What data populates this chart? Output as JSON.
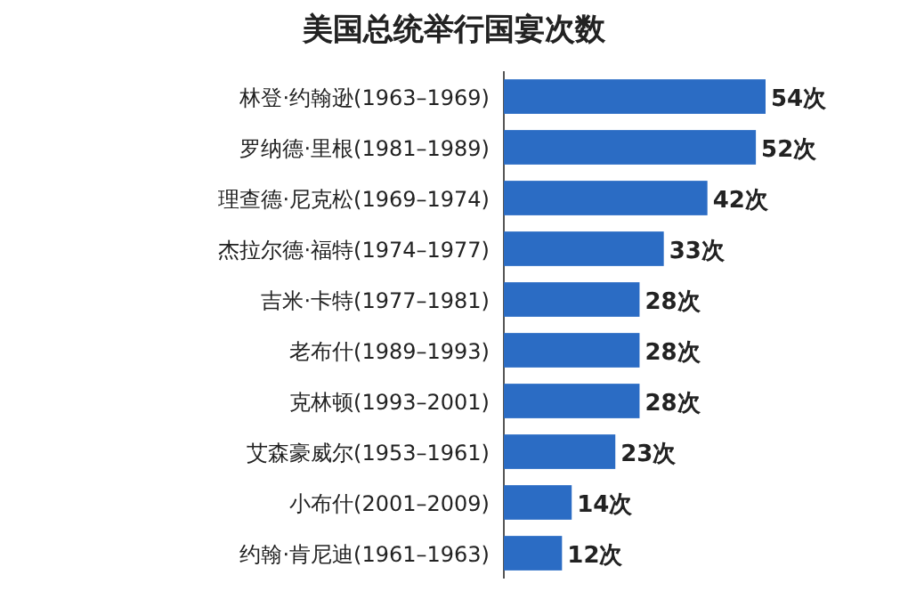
{
  "chart_data": {
    "type": "bar",
    "orientation": "horizontal",
    "title": "美国总统举行国宴次数",
    "categories": [
      "林登·约翰逊(1963–1969)",
      "罗纳德·里根(1981–1989)",
      "理查德·尼克松(1969–1974)",
      "杰拉尔德·福特(1974–1977)",
      "吉米·卡特(1977–1981)",
      "老布什(1989–1993)",
      "克林顿(1993–2001)",
      "艾森豪威尔(1953–1961)",
      "小布什(2001–2009)",
      "约翰·肯尼迪(1961–1963)"
    ],
    "values": [
      54,
      52,
      42,
      33,
      28,
      28,
      28,
      23,
      14,
      12
    ],
    "value_labels": [
      "54次",
      "52次",
      "42次",
      "33次",
      "28次",
      "28次",
      "28次",
      "23次",
      "14次",
      "12次"
    ],
    "color": "#2b6cc4"
  }
}
